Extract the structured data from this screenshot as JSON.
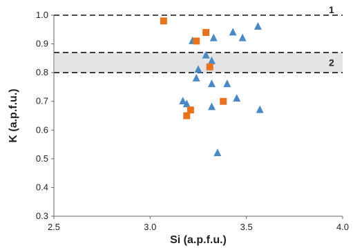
{
  "chart_data": {
    "type": "scatter",
    "title": "",
    "xlabel": "Si (a.p.f.u.)",
    "ylabel": "K (a.p.f.u.)",
    "xlim": [
      2.5,
      4.0
    ],
    "ylim": [
      0.3,
      1.0
    ],
    "xticks": [
      "2.5",
      "3.0",
      "3.5",
      "4.0"
    ],
    "yticks": [
      "0.3",
      "0.4",
      "0.5",
      "0.6",
      "0.7",
      "0.8",
      "0.9",
      "1.0"
    ],
    "grid": false,
    "legend": "none",
    "series": [
      {
        "marker": "triangle",
        "color": "#4a8ac4",
        "points": [
          [
            3.22,
            0.91
          ],
          [
            3.33,
            0.92
          ],
          [
            3.43,
            0.94
          ],
          [
            3.48,
            0.92
          ],
          [
            3.56,
            0.96
          ],
          [
            3.29,
            0.86
          ],
          [
            3.32,
            0.84
          ],
          [
            3.25,
            0.81
          ],
          [
            3.24,
            0.78
          ],
          [
            3.32,
            0.76
          ],
          [
            3.4,
            0.76
          ],
          [
            3.45,
            0.71
          ],
          [
            3.17,
            0.7
          ],
          [
            3.19,
            0.69
          ],
          [
            3.32,
            0.68
          ],
          [
            3.57,
            0.67
          ],
          [
            3.35,
            0.52
          ]
        ]
      },
      {
        "marker": "square",
        "color": "#e8731f",
        "points": [
          [
            3.07,
            0.98
          ],
          [
            3.24,
            0.91
          ],
          [
            3.29,
            0.94
          ],
          [
            3.31,
            0.82
          ],
          [
            3.38,
            0.7
          ],
          [
            3.21,
            0.67
          ],
          [
            3.19,
            0.65
          ]
        ]
      }
    ],
    "annotations": [
      {
        "text": "1",
        "kind": "dashed-line",
        "y": 1.0
      },
      {
        "text": "2",
        "kind": "shaded-band",
        "y_range": [
          0.8,
          0.87
        ]
      }
    ]
  }
}
